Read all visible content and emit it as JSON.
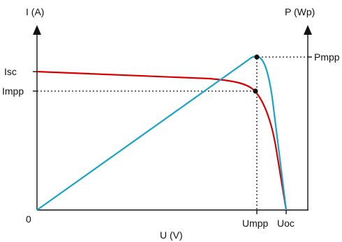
{
  "diagram": {
    "left_axis_label": "I (A)",
    "right_axis_label": "P (Wp)",
    "x_axis_label": "U (V)",
    "origin_label": "0",
    "isc_label": "Isc",
    "impp_label": "Impp",
    "pmpp_label": "Pmpp",
    "umpp_label": "Umpp",
    "uoc_label": "Uoc"
  },
  "colors": {
    "current_curve": "#d40000",
    "power_curve": "#1aa3c8",
    "axes": "#111111"
  }
}
